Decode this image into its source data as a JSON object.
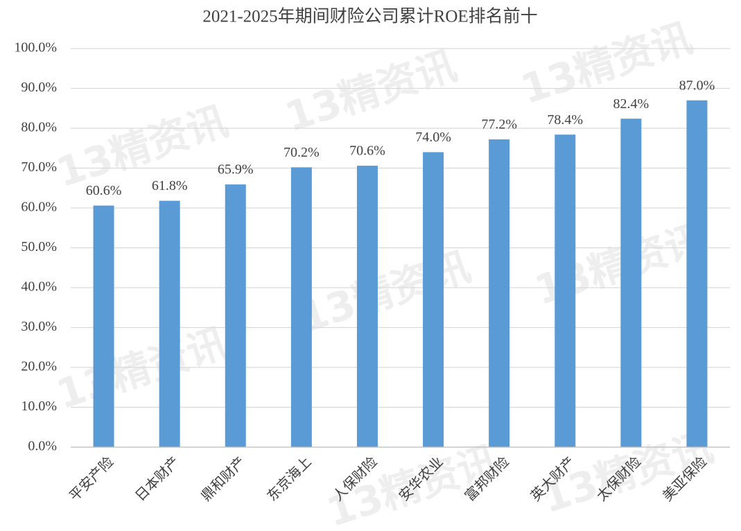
{
  "chart_data": {
    "type": "bar",
    "title": "2021-2025年期间财险公司累计ROE排名前十",
    "watermark": "13精资讯",
    "categories": [
      "平安产险",
      "日本财产",
      "鼎和财产",
      "东京海上",
      "人保财险",
      "安华农业",
      "富邦财险",
      "英大财产",
      "太保财险",
      "美亚保险"
    ],
    "values": [
      60.6,
      61.8,
      65.9,
      70.2,
      70.6,
      74.0,
      77.2,
      78.4,
      82.4,
      87.0
    ],
    "value_labels": [
      "60.6%",
      "61.8%",
      "65.9%",
      "70.2%",
      "70.6%",
      "74.0%",
      "77.2%",
      "78.4%",
      "82.4%",
      "87.0%"
    ],
    "color": "#5b9bd5",
    "ylim": [
      0,
      100
    ],
    "yticks": [
      {
        "value": 0,
        "label": "0.0%"
      },
      {
        "value": 10,
        "label": "10.0%"
      },
      {
        "value": 20,
        "label": "20.0%"
      },
      {
        "value": 30,
        "label": "30.0%"
      },
      {
        "value": 40,
        "label": "40.0%"
      },
      {
        "value": 50,
        "label": "50.0%"
      },
      {
        "value": 60,
        "label": "60.0%"
      },
      {
        "value": 70,
        "label": "70.0%"
      },
      {
        "value": 80,
        "label": "80.0%"
      },
      {
        "value": 90,
        "label": "90.0%"
      },
      {
        "value": 100,
        "label": "100.0%"
      }
    ],
    "grid": true
  }
}
